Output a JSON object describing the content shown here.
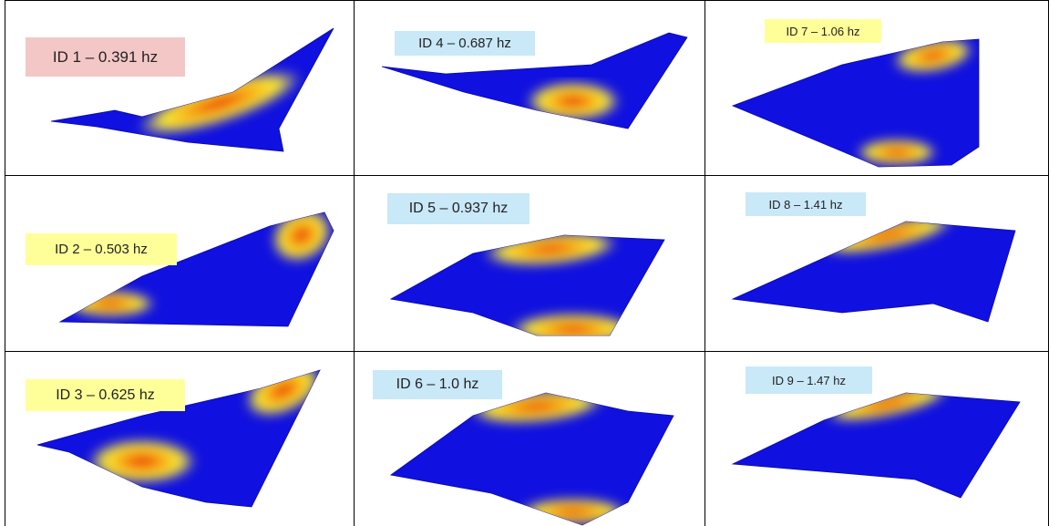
{
  "panels": [
    {
      "label": "ID 1 – 0.391 hz",
      "label_color": "#f4c7c7"
    },
    {
      "label": "ID 2 – 0.503 hz",
      "label_color": "#ffff99"
    },
    {
      "label": "ID 3 – 0.625 hz",
      "label_color": "#ffff99"
    },
    {
      "label": "ID 4 – 0.687 hz",
      "label_color": "#c9e8f8"
    },
    {
      "label": "ID 5 – 0.937 hz",
      "label_color": "#c9e8f8"
    },
    {
      "label": "ID 6 – 1.0 hz",
      "label_color": "#c9e8f8"
    },
    {
      "label": "ID 7 – 1.06 hz",
      "label_color": "#ffff99"
    },
    {
      "label": "ID 8 – 1.41 hz",
      "label_color": "#c9e8f8"
    },
    {
      "label": "ID 9 – 1.47 hz",
      "label_color": "#c9e8f8"
    }
  ]
}
